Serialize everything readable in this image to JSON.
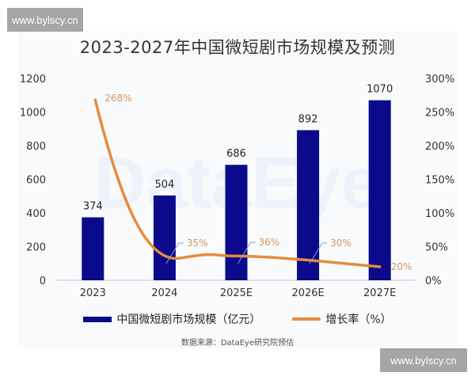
{
  "watermark": {
    "top_left": "www.bylscy.cn",
    "bottom_right": "www.bylscy.cn"
  },
  "chart_data": {
    "type": "bar",
    "title": "2023-2027年中国微短剧市场规模及预测",
    "categories": [
      "2023",
      "2024",
      "2025E",
      "2026E",
      "2027E"
    ],
    "series": [
      {
        "name": "中国微短剧市场规模（亿元）",
        "type": "bar",
        "axis": "left",
        "color": "#0a0a8a",
        "values": [
          374,
          504,
          686,
          892,
          1070
        ]
      },
      {
        "name": "增长率（%）",
        "type": "line",
        "axis": "right",
        "color": "#e88a3c",
        "values": [
          268,
          35,
          36,
          30,
          20
        ],
        "labels": [
          "268%",
          "35%",
          "36%",
          "30%",
          "20%"
        ]
      }
    ],
    "left_axis": {
      "ticks": [
        "0",
        "200",
        "400",
        "600",
        "800",
        "1000",
        "1200"
      ],
      "ylim": [
        0,
        1200
      ]
    },
    "right_axis": {
      "ticks": [
        "0%",
        "50%",
        "100%",
        "150%",
        "200%",
        "250%",
        "300%"
      ],
      "ylim": [
        0,
        300
      ]
    },
    "legend_position": "bottom",
    "grid": false,
    "background_watermark": "DataEye",
    "source": "数据来源：DataEye研究院预估"
  },
  "legend": {
    "bar_label": "中国微短剧市场规模（亿元）",
    "line_label": "增长率（%）"
  }
}
